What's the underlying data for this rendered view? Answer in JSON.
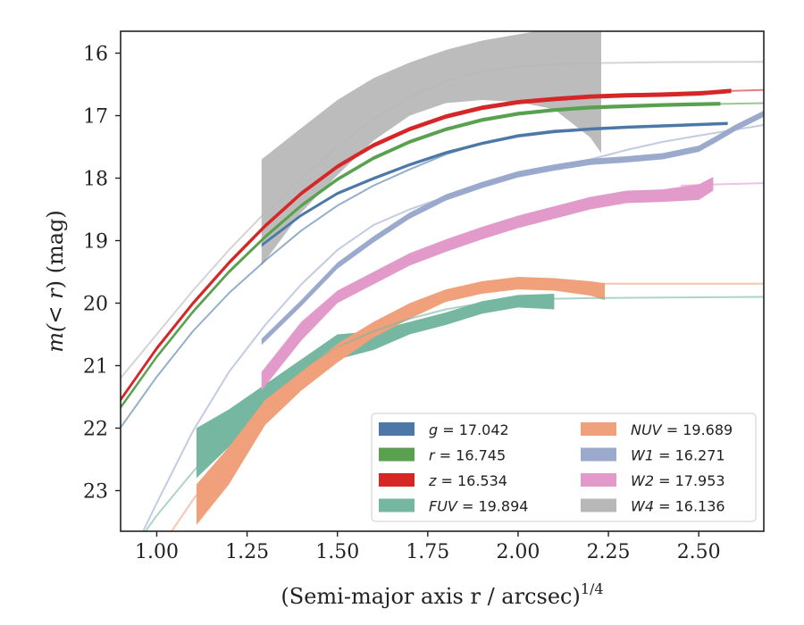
{
  "chart_data": {
    "type": "line",
    "xlabel": "(Semi-major axis r / arcsec)",
    "xlabel_sup": "1/4",
    "ylabel_prefix": "m(",
    "ylabel_math": "< r",
    "ylabel_suffix": ") (mag)",
    "xlim": [
      0.9,
      2.68
    ],
    "ylim": [
      15.65,
      23.65
    ],
    "y_inverted": true,
    "xticks": [
      "1.00",
      "1.25",
      "1.50",
      "1.75",
      "2.00",
      "2.25",
      "2.50"
    ],
    "yticks": [
      "16",
      "17",
      "18",
      "19",
      "20",
      "21",
      "22",
      "23"
    ],
    "grid": false,
    "legend_position": "lower-right",
    "series": [
      {
        "name": "g",
        "legend_math": "g",
        "legend_value": "= 17.042",
        "color": "#4c78a8",
        "total_mag": 17.042,
        "model": [
          [
            0.9,
            21.99
          ],
          [
            1.0,
            21.18
          ],
          [
            1.1,
            20.45
          ],
          [
            1.2,
            19.84
          ],
          [
            1.3,
            19.32
          ],
          [
            1.4,
            18.84
          ],
          [
            1.5,
            18.44
          ],
          [
            1.6,
            18.12
          ],
          [
            1.7,
            17.86
          ],
          [
            1.8,
            17.62
          ],
          [
            1.9,
            17.44
          ],
          [
            2.0,
            17.31
          ],
          [
            2.1,
            17.24
          ],
          [
            2.2,
            17.21
          ],
          [
            2.3,
            17.18
          ],
          [
            2.4,
            17.16
          ],
          [
            2.5,
            17.14
          ],
          [
            2.58,
            17.12
          ]
        ],
        "band": [
          [
            1.29,
            19.05,
            19.1
          ],
          [
            1.4,
            18.57,
            18.62
          ],
          [
            1.5,
            18.22,
            18.27
          ],
          [
            1.6,
            17.98,
            18.03
          ],
          [
            1.7,
            17.76,
            17.81
          ],
          [
            1.8,
            17.57,
            17.62
          ],
          [
            1.9,
            17.42,
            17.47
          ],
          [
            2.0,
            17.3,
            17.35
          ],
          [
            2.1,
            17.23,
            17.28
          ],
          [
            2.2,
            17.19,
            17.24
          ],
          [
            2.3,
            17.16,
            17.21
          ],
          [
            2.4,
            17.14,
            17.19
          ],
          [
            2.58,
            17.1,
            17.15
          ]
        ]
      },
      {
        "name": "r",
        "legend_math": "r",
        "legend_value": "= 16.745",
        "color": "#59a14f",
        "total_mag": 16.745,
        "model": [
          [
            0.9,
            21.67
          ],
          [
            1.0,
            20.86
          ],
          [
            1.1,
            20.14
          ],
          [
            1.2,
            19.5
          ],
          [
            1.3,
            18.94
          ],
          [
            1.4,
            18.44
          ],
          [
            1.5,
            18.02
          ],
          [
            1.6,
            17.68
          ],
          [
            1.7,
            17.42
          ],
          [
            1.8,
            17.22
          ],
          [
            1.9,
            17.07
          ],
          [
            2.0,
            16.97
          ],
          [
            2.1,
            16.91
          ],
          [
            2.2,
            16.87
          ],
          [
            2.3,
            16.85
          ],
          [
            2.4,
            16.83
          ],
          [
            2.5,
            16.82
          ],
          [
            2.68,
            16.8
          ]
        ],
        "band": [
          [
            0.9,
            21.64,
            21.7
          ],
          [
            1.0,
            20.83,
            20.89
          ],
          [
            1.1,
            20.11,
            20.17
          ],
          [
            1.2,
            19.47,
            19.53
          ],
          [
            1.3,
            18.91,
            18.97
          ],
          [
            1.4,
            18.41,
            18.47
          ],
          [
            1.5,
            17.99,
            18.05
          ],
          [
            1.6,
            17.65,
            17.71
          ],
          [
            1.7,
            17.39,
            17.45
          ],
          [
            1.8,
            17.19,
            17.25
          ],
          [
            1.9,
            17.04,
            17.1
          ],
          [
            2.0,
            16.94,
            17.0
          ],
          [
            2.1,
            16.88,
            16.94
          ],
          [
            2.2,
            16.84,
            16.9
          ],
          [
            2.3,
            16.82,
            16.88
          ],
          [
            2.4,
            16.8,
            16.86
          ],
          [
            2.56,
            16.78,
            16.84
          ]
        ]
      },
      {
        "name": "z",
        "legend_math": "z",
        "legend_value": "= 16.534",
        "color": "#d62728",
        "total_mag": 16.534,
        "model": [
          [
            0.9,
            21.55
          ],
          [
            1.0,
            20.73
          ],
          [
            1.1,
            20.01
          ],
          [
            1.2,
            19.36
          ],
          [
            1.3,
            18.77
          ],
          [
            1.4,
            18.25
          ],
          [
            1.5,
            17.82
          ],
          [
            1.6,
            17.48
          ],
          [
            1.7,
            17.22
          ],
          [
            1.8,
            17.02
          ],
          [
            1.9,
            16.88
          ],
          [
            2.0,
            16.79
          ],
          [
            2.1,
            16.73
          ],
          [
            2.2,
            16.69
          ],
          [
            2.3,
            16.66
          ],
          [
            2.4,
            16.64
          ],
          [
            2.5,
            16.62
          ],
          [
            2.68,
            16.59
          ]
        ],
        "band": [
          [
            0.9,
            21.51,
            21.58
          ],
          [
            1.0,
            20.69,
            20.76
          ],
          [
            1.1,
            19.97,
            20.04
          ],
          [
            1.2,
            19.32,
            19.39
          ],
          [
            1.3,
            18.73,
            18.8
          ],
          [
            1.4,
            18.21,
            18.28
          ],
          [
            1.5,
            17.78,
            17.85
          ],
          [
            1.6,
            17.44,
            17.51
          ],
          [
            1.7,
            17.18,
            17.25
          ],
          [
            1.8,
            16.98,
            17.05
          ],
          [
            1.9,
            16.84,
            16.91
          ],
          [
            2.0,
            16.75,
            16.82
          ],
          [
            2.1,
            16.7,
            16.77
          ],
          [
            2.2,
            16.66,
            16.73
          ],
          [
            2.3,
            16.64,
            16.71
          ],
          [
            2.4,
            16.63,
            16.7
          ],
          [
            2.5,
            16.61,
            16.68
          ],
          [
            2.59,
            16.57,
            16.64
          ]
        ]
      },
      {
        "name": "FUV",
        "legend_math": "FUV",
        "legend_value": "= 19.894",
        "color": "#76b7a2",
        "total_mag": 19.894,
        "model": [
          [
            0.9,
            24.2
          ],
          [
            1.0,
            23.4
          ],
          [
            1.1,
            22.7
          ],
          [
            1.2,
            22.05
          ],
          [
            1.3,
            21.5
          ],
          [
            1.4,
            21.05
          ],
          [
            1.5,
            20.7
          ],
          [
            1.6,
            20.45
          ],
          [
            1.7,
            20.25
          ],
          [
            1.8,
            20.1
          ],
          [
            1.9,
            20.0
          ],
          [
            2.0,
            19.95
          ],
          [
            2.1,
            19.93
          ],
          [
            2.2,
            19.92
          ],
          [
            2.4,
            19.91
          ],
          [
            2.68,
            19.9
          ]
        ],
        "band": [
          [
            1.11,
            22.0,
            22.8
          ],
          [
            1.2,
            21.7,
            22.3
          ],
          [
            1.3,
            21.3,
            21.8
          ],
          [
            1.4,
            20.9,
            21.3
          ],
          [
            1.5,
            20.5,
            20.9
          ],
          [
            1.6,
            20.45,
            20.75
          ],
          [
            1.7,
            20.3,
            20.5
          ],
          [
            1.8,
            20.15,
            20.35
          ],
          [
            1.9,
            19.97,
            20.17
          ],
          [
            2.0,
            19.87,
            20.07
          ],
          [
            2.1,
            19.85,
            20.1
          ]
        ]
      },
      {
        "name": "NUV",
        "legend_math": "NUV",
        "legend_value": "= 19.689",
        "color": "#f0a07a",
        "total_mag": 19.689,
        "model": [
          [
            0.9,
            25.0
          ],
          [
            1.0,
            24.0
          ],
          [
            1.1,
            23.15
          ],
          [
            1.2,
            22.4
          ],
          [
            1.3,
            21.75
          ],
          [
            1.4,
            21.15
          ],
          [
            1.5,
            20.7
          ],
          [
            1.6,
            20.35
          ],
          [
            1.7,
            20.1
          ],
          [
            1.8,
            19.92
          ],
          [
            1.9,
            19.8
          ],
          [
            2.0,
            19.73
          ],
          [
            2.1,
            19.7
          ],
          [
            2.2,
            19.69
          ],
          [
            2.4,
            19.69
          ],
          [
            2.68,
            19.69
          ]
        ],
        "band": [
          [
            1.11,
            22.9,
            23.55
          ],
          [
            1.2,
            22.3,
            22.9
          ],
          [
            1.3,
            21.55,
            21.95
          ],
          [
            1.4,
            21.1,
            21.4
          ],
          [
            1.5,
            20.65,
            20.95
          ],
          [
            1.6,
            20.3,
            20.55
          ],
          [
            1.7,
            20.0,
            20.25
          ],
          [
            1.8,
            19.78,
            19.98
          ],
          [
            1.9,
            19.65,
            19.85
          ],
          [
            2.0,
            19.58,
            19.78
          ],
          [
            2.1,
            19.6,
            19.8
          ],
          [
            2.2,
            19.65,
            19.88
          ],
          [
            2.24,
            19.68,
            19.95
          ]
        ]
      },
      {
        "name": "W1",
        "legend_math": "W1",
        "legend_value": "= 16.271",
        "color": "#9aa9cc",
        "total_mag": 16.271,
        "model": [
          [
            0.9,
            24.4
          ],
          [
            1.0,
            23.2
          ],
          [
            1.1,
            22.05
          ],
          [
            1.2,
            21.1
          ],
          [
            1.3,
            20.35
          ],
          [
            1.4,
            19.7
          ],
          [
            1.5,
            19.15
          ],
          [
            1.6,
            18.75
          ],
          [
            1.7,
            18.5
          ],
          [
            1.8,
            18.3
          ],
          [
            1.9,
            18.1
          ],
          [
            2.0,
            17.95
          ],
          [
            2.1,
            17.82
          ],
          [
            2.2,
            17.7
          ],
          [
            2.3,
            17.55
          ],
          [
            2.4,
            17.42
          ],
          [
            2.5,
            17.32
          ],
          [
            2.68,
            17.15
          ]
        ],
        "band": [
          [
            1.29,
            20.57,
            20.67
          ],
          [
            1.4,
            19.95,
            20.05
          ],
          [
            1.5,
            19.35,
            19.45
          ],
          [
            1.6,
            18.93,
            19.03
          ],
          [
            1.7,
            18.55,
            18.65
          ],
          [
            1.8,
            18.26,
            18.36
          ],
          [
            1.9,
            18.06,
            18.16
          ],
          [
            2.0,
            17.89,
            17.99
          ],
          [
            2.1,
            17.78,
            17.88
          ],
          [
            2.2,
            17.69,
            17.79
          ],
          [
            2.3,
            17.65,
            17.75
          ],
          [
            2.4,
            17.6,
            17.7
          ],
          [
            2.5,
            17.48,
            17.58
          ],
          [
            2.55,
            17.32,
            17.42
          ],
          [
            2.6,
            17.15,
            17.25
          ],
          [
            2.68,
            16.92,
            17.02
          ]
        ]
      },
      {
        "name": "W2",
        "legend_math": "W2",
        "legend_value": "= 17.953",
        "color": "#e29acb",
        "total_mag": 17.953,
        "model": [
          [
            2.45,
            18.12
          ],
          [
            2.55,
            18.1
          ],
          [
            2.68,
            18.08
          ]
        ],
        "band": [
          [
            1.29,
            21.1,
            21.4
          ],
          [
            1.4,
            20.3,
            20.6
          ],
          [
            1.5,
            19.8,
            20.0
          ],
          [
            1.6,
            19.5,
            19.7
          ],
          [
            1.7,
            19.2,
            19.4
          ],
          [
            1.8,
            18.98,
            19.18
          ],
          [
            1.9,
            18.78,
            18.98
          ],
          [
            2.0,
            18.6,
            18.8
          ],
          [
            2.1,
            18.45,
            18.65
          ],
          [
            2.2,
            18.3,
            18.5
          ],
          [
            2.3,
            18.2,
            18.4
          ],
          [
            2.4,
            18.18,
            18.38
          ],
          [
            2.5,
            18.1,
            18.35
          ],
          [
            2.54,
            17.98,
            18.2
          ]
        ]
      },
      {
        "name": "W4",
        "legend_math": "W4",
        "legend_value": "= 16.136",
        "color": "#b8b8b8",
        "total_mag": 16.136,
        "model": [
          [
            0.9,
            21.2
          ],
          [
            1.0,
            20.5
          ],
          [
            1.1,
            19.8
          ],
          [
            1.2,
            19.15
          ],
          [
            1.3,
            18.55
          ],
          [
            1.4,
            18.0
          ],
          [
            1.5,
            17.5
          ],
          [
            1.6,
            17.05
          ],
          [
            1.7,
            16.7
          ],
          [
            1.8,
            16.45
          ],
          [
            1.9,
            16.3
          ],
          [
            2.0,
            16.22
          ],
          [
            2.1,
            16.18
          ],
          [
            2.2,
            16.16
          ],
          [
            2.4,
            16.145
          ],
          [
            2.68,
            16.14
          ]
        ],
        "band": [
          [
            1.29,
            17.7,
            19.4
          ],
          [
            1.4,
            17.2,
            18.55
          ],
          [
            1.5,
            16.75,
            17.95
          ],
          [
            1.6,
            16.4,
            17.4
          ],
          [
            1.7,
            16.15,
            17.0
          ],
          [
            1.8,
            15.95,
            16.8
          ],
          [
            1.9,
            15.8,
            16.75
          ],
          [
            2.0,
            15.7,
            16.78
          ],
          [
            2.1,
            15.6,
            16.9
          ],
          [
            2.2,
            15.6,
            17.35
          ],
          [
            2.23,
            15.6,
            17.6
          ]
        ]
      }
    ]
  }
}
